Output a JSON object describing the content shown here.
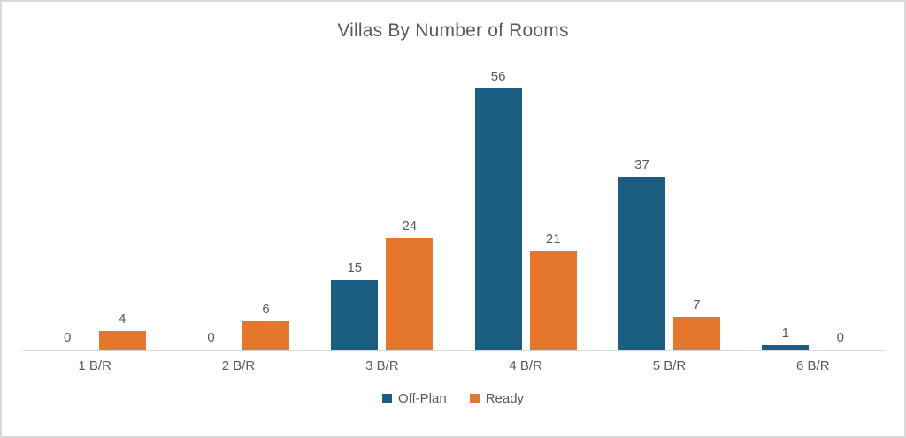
{
  "chart_data": {
    "type": "bar",
    "title": "Villas By Number of Rooms",
    "categories": [
      "1 B/R",
      "2 B/R",
      "3 B/R",
      "4 B/R",
      "5 B/R",
      "6 B/R"
    ],
    "series": [
      {
        "name": "Off-Plan",
        "color": "#1B5E82",
        "values": [
          0,
          0,
          15,
          56,
          37,
          1
        ]
      },
      {
        "name": "Ready",
        "color": "#E5762E",
        "values": [
          4,
          6,
          24,
          21,
          7,
          0
        ]
      }
    ],
    "xlabel": "",
    "ylabel": "",
    "ylim": [
      0,
      60
    ],
    "grid": false,
    "legend_position": "bottom",
    "data_labels": true
  },
  "style": {
    "text_color": "#595959",
    "axis_color": "#D9D9D9",
    "background": "#FFFFFF"
  }
}
